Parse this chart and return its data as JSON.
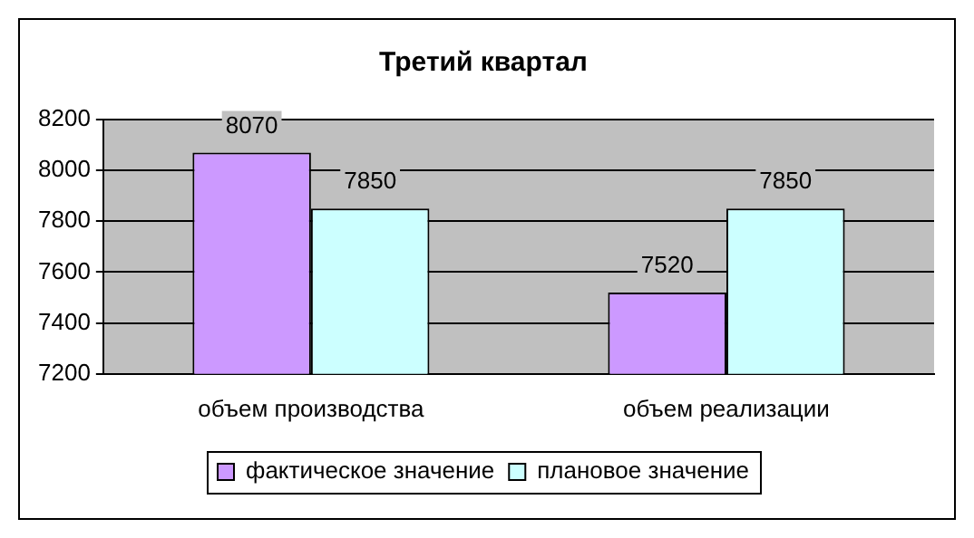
{
  "chart_data": {
    "type": "bar",
    "title": "Третий квартал",
    "categories": [
      "объем производства",
      "объем реализации"
    ],
    "series": [
      {
        "name": "фактическое значение",
        "color": "#cc99ff",
        "values": [
          8070,
          7520
        ]
      },
      {
        "name": "плановое значение",
        "color": "#ccffff",
        "values": [
          7850,
          7850
        ]
      }
    ],
    "ylim": [
      7200,
      8200
    ],
    "yticks": [
      7200,
      7400,
      7600,
      7800,
      8000,
      8200
    ],
    "grid": "y",
    "legend": "bottom",
    "data_labels": true
  }
}
